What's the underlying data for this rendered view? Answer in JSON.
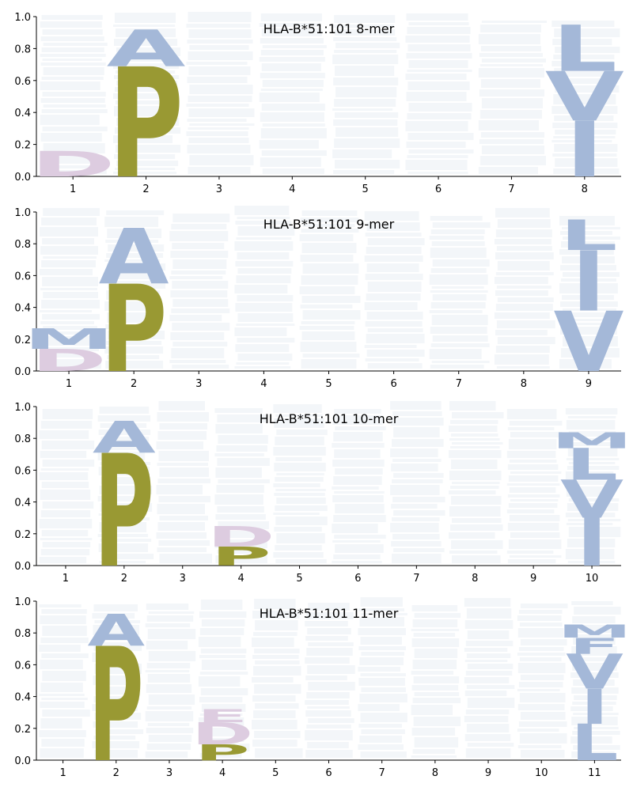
{
  "chart_data": [
    {
      "type": "logo",
      "title": "HLA-B*51:101 8-mer",
      "ylim": [
        0,
        1.0
      ],
      "yticks": [
        "0.0",
        "0.2",
        "0.4",
        "0.6",
        "0.8",
        "1.0"
      ],
      "positions": [
        "1",
        "2",
        "3",
        "4",
        "5",
        "6",
        "7",
        "8"
      ],
      "columns": [
        {
          "letters": [
            {
              "aa": "D",
              "height": 0.16
            }
          ]
        },
        {
          "letters": [
            {
              "aa": "P",
              "height": 0.69
            },
            {
              "aa": "A",
              "height": 0.23
            }
          ]
        },
        {
          "letters": []
        },
        {
          "letters": []
        },
        {
          "letters": []
        },
        {
          "letters": []
        },
        {
          "letters": []
        },
        {
          "letters": [
            {
              "aa": "I",
              "height": 0.35
            },
            {
              "aa": "V",
              "height": 0.31
            },
            {
              "aa": "L",
              "height": 0.29
            }
          ]
        }
      ]
    },
    {
      "type": "logo",
      "title": "HLA-B*51:101 9-mer",
      "ylim": [
        0,
        1.0
      ],
      "yticks": [
        "0.0",
        "0.2",
        "0.4",
        "0.6",
        "0.8",
        "1.0"
      ],
      "positions": [
        "1",
        "2",
        "3",
        "4",
        "5",
        "6",
        "7",
        "8",
        "9"
      ],
      "columns": [
        {
          "letters": [
            {
              "aa": "D",
              "height": 0.14
            },
            {
              "aa": "M",
              "height": 0.13
            }
          ]
        },
        {
          "letters": [
            {
              "aa": "P",
              "height": 0.55
            },
            {
              "aa": "A",
              "height": 0.35
            }
          ]
        },
        {
          "letters": []
        },
        {
          "letters": []
        },
        {
          "letters": []
        },
        {
          "letters": []
        },
        {
          "letters": []
        },
        {
          "letters": []
        },
        {
          "letters": [
            {
              "aa": "V",
              "height": 0.38
            },
            {
              "aa": "I",
              "height": 0.38
            },
            {
              "aa": "L",
              "height": 0.19
            }
          ]
        }
      ]
    },
    {
      "type": "logo",
      "title": "HLA-B*51:101 10-mer",
      "ylim": [
        0,
        1.0
      ],
      "yticks": [
        "0.0",
        "0.2",
        "0.4",
        "0.6",
        "0.8",
        "1.0"
      ],
      "positions": [
        "1",
        "2",
        "3",
        "4",
        "5",
        "6",
        "7",
        "8",
        "9",
        "10"
      ],
      "columns": [
        {
          "letters": []
        },
        {
          "letters": [
            {
              "aa": "P",
              "height": 0.71
            },
            {
              "aa": "A",
              "height": 0.2
            }
          ]
        },
        {
          "letters": []
        },
        {
          "letters": [
            {
              "aa": "P",
              "height": 0.12
            },
            {
              "aa": "D",
              "height": 0.13
            }
          ]
        },
        {
          "letters": []
        },
        {
          "letters": []
        },
        {
          "letters": []
        },
        {
          "letters": []
        },
        {
          "letters": []
        },
        {
          "letters": [
            {
              "aa": "I",
              "height": 0.3
            },
            {
              "aa": "V",
              "height": 0.24
            },
            {
              "aa": "L",
              "height": 0.2
            },
            {
              "aa": "M",
              "height": 0.1
            }
          ]
        }
      ]
    },
    {
      "type": "logo",
      "title": "HLA-B*51:101 11-mer",
      "ylim": [
        0,
        1.0
      ],
      "yticks": [
        "0.0",
        "0.2",
        "0.4",
        "0.6",
        "0.8",
        "1.0"
      ],
      "positions": [
        "1",
        "2",
        "3",
        "4",
        "5",
        "6",
        "7",
        "8",
        "9",
        "10",
        "11"
      ],
      "columns": [
        {
          "letters": []
        },
        {
          "letters": [
            {
              "aa": "P",
              "height": 0.72
            },
            {
              "aa": "A",
              "height": 0.2
            }
          ]
        },
        {
          "letters": []
        },
        {
          "letters": [
            {
              "aa": "P",
              "height": 0.1
            },
            {
              "aa": "D",
              "height": 0.14
            },
            {
              "aa": "E",
              "height": 0.08
            }
          ]
        },
        {
          "letters": []
        },
        {
          "letters": []
        },
        {
          "letters": []
        },
        {
          "letters": []
        },
        {
          "letters": []
        },
        {
          "letters": []
        },
        {
          "letters": [
            {
              "aa": "L",
              "height": 0.23
            },
            {
              "aa": "I",
              "height": 0.22
            },
            {
              "aa": "V",
              "height": 0.22
            },
            {
              "aa": "F",
              "height": 0.1
            },
            {
              "aa": "M",
              "height": 0.08
            }
          ]
        }
      ]
    }
  ],
  "colors": {
    "P": "#999933",
    "A": "#a4b8d8",
    "I": "#a4b8d8",
    "V": "#a4b8d8",
    "L": "#a4b8d8",
    "M": "#a4b8d8",
    "F": "#a4b8d8",
    "D": "#ddcce0",
    "E": "#ddcce0",
    "background_letter": "#dde4ee",
    "axis": "#000000"
  }
}
